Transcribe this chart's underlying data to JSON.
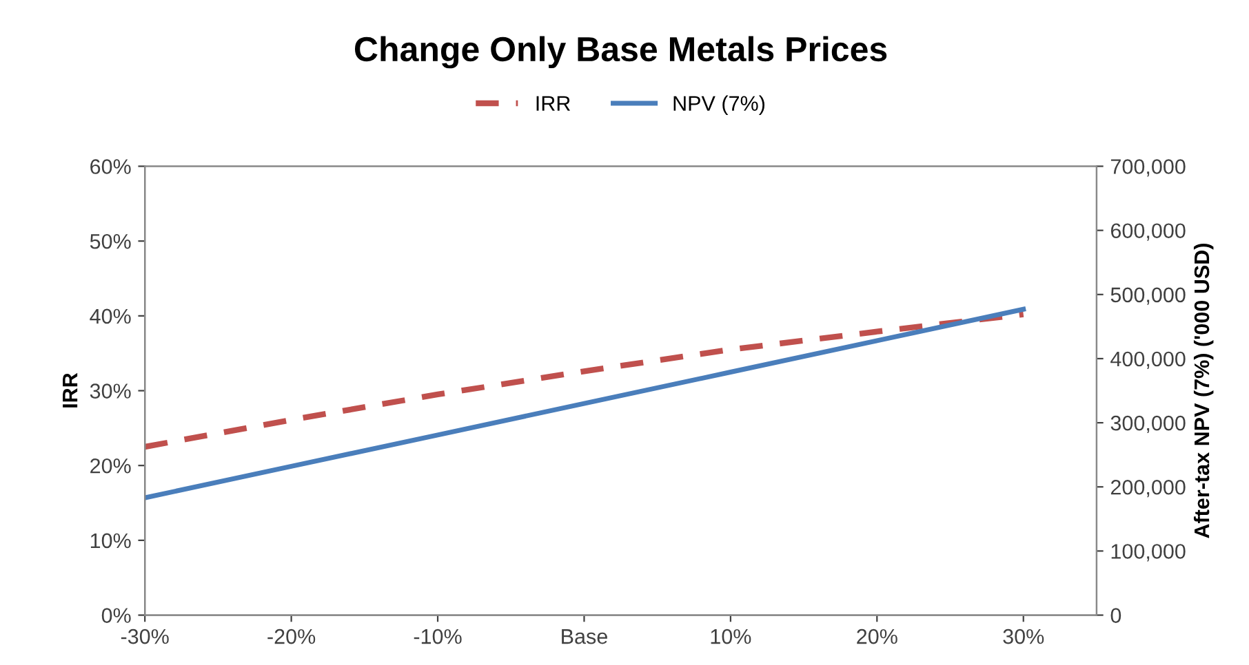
{
  "chart_data": {
    "type": "line",
    "title": "Change Only Base Metals Prices",
    "ylabel": "IRR",
    "y2label": "After-tax NPV (7%) ('000 USD)",
    "x": [
      -30,
      -20,
      -10,
      0,
      10,
      20,
      30
    ],
    "xlim": [
      -30,
      35
    ],
    "xticks": [
      {
        "value": -30,
        "label": "-30%"
      },
      {
        "value": -20,
        "label": "-20%"
      },
      {
        "value": -10,
        "label": "-10%"
      },
      {
        "value": 0,
        "label": "Base"
      },
      {
        "value": 10,
        "label": "10%"
      },
      {
        "value": 20,
        "label": "20%"
      },
      {
        "value": 30,
        "label": "30%"
      }
    ],
    "ylim": [
      0,
      60
    ],
    "yticks": [
      {
        "value": 0,
        "label": "0%"
      },
      {
        "value": 10,
        "label": "10%"
      },
      {
        "value": 20,
        "label": "20%"
      },
      {
        "value": 30,
        "label": "30%"
      },
      {
        "value": 40,
        "label": "40%"
      },
      {
        "value": 50,
        "label": "50%"
      },
      {
        "value": 60,
        "label": "60%"
      }
    ],
    "y2lim": [
      0,
      700000
    ],
    "y2ticks": [
      {
        "value": 0,
        "label": "0"
      },
      {
        "value": 100000,
        "label": "100,000"
      },
      {
        "value": 200000,
        "label": "200,000"
      },
      {
        "value": 300000,
        "label": "300,000"
      },
      {
        "value": 400000,
        "label": "400,000"
      },
      {
        "value": 500000,
        "label": "500,000"
      },
      {
        "value": 600000,
        "label": "600,000"
      },
      {
        "value": 700000,
        "label": "700,000"
      }
    ],
    "series": [
      {
        "name": "IRR",
        "color": "#c0504d",
        "line_style": "dashed",
        "values": [
          22.5,
          26.1,
          29.5,
          32.6,
          35.5,
          37.9,
          40.2
        ]
      },
      {
        "name": "NPV (7%)",
        "color": "#4a7ebb",
        "line_style": "solid",
        "axis": "y2",
        "values": [
          183000,
          232000,
          281000,
          330000,
          379000,
          428000,
          477000
        ]
      }
    ],
    "legend": "top",
    "grid": false,
    "marker": "none"
  }
}
